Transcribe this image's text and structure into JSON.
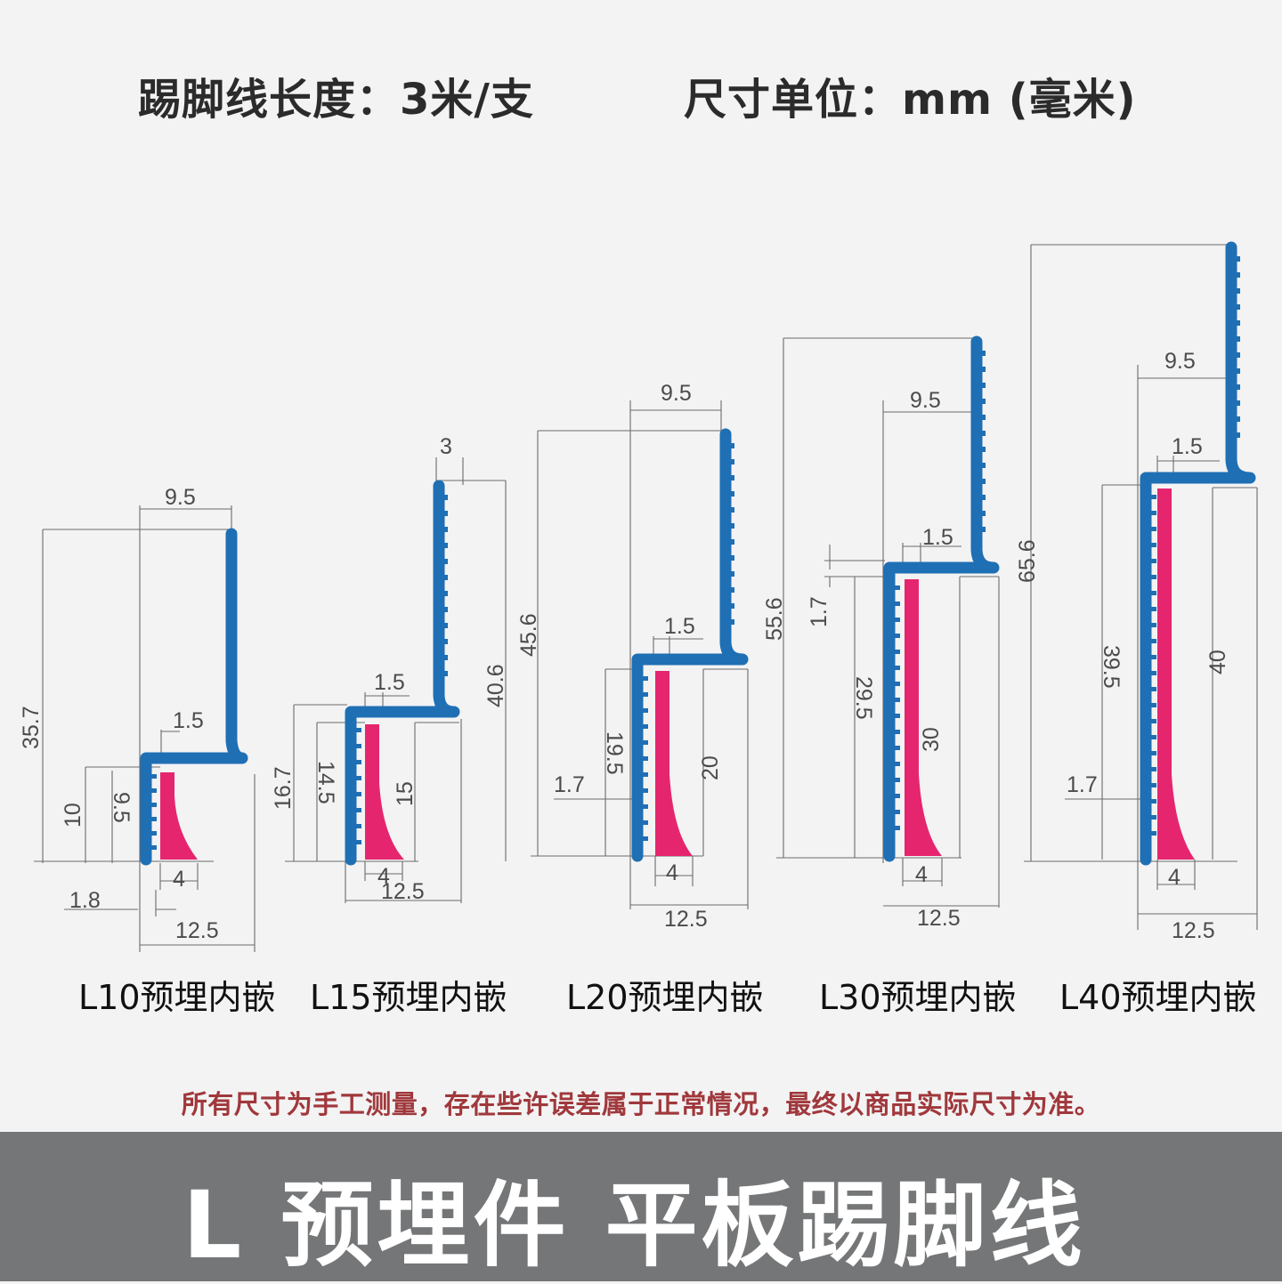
{
  "header": {
    "length_text": "踢脚线长度：3米/支",
    "unit_text": "尺寸单位：mm (毫米)"
  },
  "profiles": [
    {
      "id": "L10",
      "caption": "L10预埋内嵌",
      "labels": [
        "9.5",
        "35.7",
        "1.5",
        "10",
        "9.5",
        "4",
        "1.8",
        "12.5"
      ]
    },
    {
      "id": "L15",
      "caption": "L15预埋内嵌",
      "labels": [
        "3",
        "40.6",
        "1.5",
        "16.7",
        "14.5",
        "15",
        "4",
        "12.5"
      ]
    },
    {
      "id": "L20",
      "caption": "L20预埋内嵌",
      "labels": [
        "9.5",
        "45.6",
        "1.5",
        "1.7",
        "19.5",
        "20",
        "4",
        "12.5"
      ]
    },
    {
      "id": "L30",
      "caption": "L30预埋内嵌",
      "labels": [
        "9.5",
        "55.6",
        "1.5",
        "1.7",
        "29.5",
        "30",
        "4",
        "12.5"
      ]
    },
    {
      "id": "L40",
      "caption": "L40预埋内嵌",
      "labels": [
        "65.6",
        "9.5",
        "1.5",
        "39.5",
        "40",
        "1.7",
        "4",
        "12.5"
      ]
    }
  ],
  "disclaimer": "所有尺寸为手工测量，存在些许误差属于正常情况，最终以商品实际尺寸为准。",
  "footer": {
    "title": "L 预埋件  平板踢脚线"
  },
  "colors": {
    "profile": "#1f6fb4",
    "insert": "#e5266e",
    "footer_bg": "#747677",
    "disclaimer": "#a0383c"
  }
}
